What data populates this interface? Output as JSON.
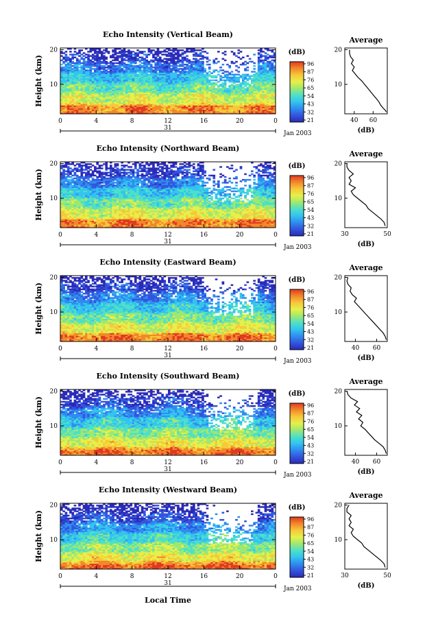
{
  "figure": {
    "bottom_xlabel": "Local Time",
    "date_label": "Jan 2003",
    "date_tick_label": "31",
    "colorbar_unit": "(dB)",
    "colorbar_ticks": [
      "96",
      "87",
      "76",
      "65",
      "54",
      "43",
      "32",
      "21"
    ],
    "colorscale": [
      "#2b2bb8",
      "#3355dd",
      "#2f8cf0",
      "#33c3f0",
      "#4de0c8",
      "#9fe870",
      "#e6f04a",
      "#f7c83a",
      "#f2882a",
      "#e03a22"
    ],
    "chart_data": [
      {
        "type": "heatmap",
        "title": "Echo Intensity (Vertical Beam)",
        "ylabel": "Height (km)",
        "x_ticks": [
          "0",
          "4",
          "8",
          "12",
          "16",
          "20",
          "0"
        ],
        "y_ticks": [
          "20",
          "10"
        ],
        "xlim": [
          0,
          24
        ],
        "ylim": [
          1.5,
          20.5
        ],
        "zlim": [
          21,
          96
        ],
        "profile": {
          "title": "Average",
          "xlabel": "(dB)",
          "x_ticks": [
            "40",
            "60"
          ],
          "y_ticks": [
            "20",
            "10"
          ],
          "xlim": [
            30,
            75
          ],
          "points": [
            [
              74,
              2
            ],
            [
              73,
              2.5
            ],
            [
              71,
              3
            ],
            [
              68,
              4
            ],
            [
              66,
              5
            ],
            [
              63,
              6
            ],
            [
              60,
              7
            ],
            [
              57,
              8
            ],
            [
              54,
              9
            ],
            [
              51,
              10
            ],
            [
              48,
              11
            ],
            [
              44,
              12
            ],
            [
              41,
              13
            ],
            [
              38,
              14
            ],
            [
              40,
              15
            ],
            [
              37,
              16
            ],
            [
              39,
              17
            ],
            [
              36,
              18
            ],
            [
              35,
              19
            ],
            [
              35,
              20
            ]
          ]
        }
      },
      {
        "type": "heatmap",
        "title": "Echo Intensity (Northward Beam)",
        "ylabel": "Height (km)",
        "x_ticks": [
          "0",
          "4",
          "8",
          "12",
          "16",
          "20",
          "0"
        ],
        "y_ticks": [
          "20",
          "10"
        ],
        "xlim": [
          0,
          24
        ],
        "ylim": [
          1.5,
          20.5
        ],
        "zlim": [
          21,
          96
        ],
        "profile": {
          "title": "Average",
          "xlabel": "(dB)",
          "x_ticks": [
            "30",
            "50"
          ],
          "y_ticks": [
            "20",
            "10"
          ],
          "xlim": [
            30,
            50
          ],
          "points": [
            [
              49,
              2
            ],
            [
              48.5,
              3
            ],
            [
              47,
              4
            ],
            [
              45,
              5
            ],
            [
              43,
              6
            ],
            [
              41,
              7
            ],
            [
              40,
              8
            ],
            [
              38,
              9
            ],
            [
              36,
              10
            ],
            [
              34,
              11
            ],
            [
              33,
              12
            ],
            [
              35,
              13
            ],
            [
              32,
              14
            ],
            [
              33,
              15
            ],
            [
              32,
              16
            ],
            [
              34,
              17
            ],
            [
              32,
              18
            ],
            [
              31,
              19
            ],
            [
              31,
              20
            ]
          ]
        }
      },
      {
        "type": "heatmap",
        "title": "Echo Intensity (Eastward Beam)",
        "ylabel": "Height (km)",
        "x_ticks": [
          "0",
          "4",
          "8",
          "12",
          "16",
          "20",
          "0"
        ],
        "y_ticks": [
          "20",
          "10"
        ],
        "xlim": [
          0,
          24
        ],
        "ylim": [
          1.5,
          20.5
        ],
        "zlim": [
          21,
          96
        ],
        "profile": {
          "title": "Average",
          "xlabel": "(dB)",
          "x_ticks": [
            "40",
            "60"
          ],
          "y_ticks": [
            "20",
            "10"
          ],
          "xlim": [
            30,
            70
          ],
          "points": [
            [
              69,
              2
            ],
            [
              68,
              3
            ],
            [
              66,
              4
            ],
            [
              63,
              5
            ],
            [
              60,
              6
            ],
            [
              57,
              7
            ],
            [
              54,
              8
            ],
            [
              51,
              9
            ],
            [
              48,
              10
            ],
            [
              45,
              11
            ],
            [
              42,
              12
            ],
            [
              39,
              13
            ],
            [
              41,
              14
            ],
            [
              37,
              15
            ],
            [
              35,
              16
            ],
            [
              36,
              17
            ],
            [
              33,
              18
            ],
            [
              32,
              19
            ],
            [
              33,
              20
            ]
          ]
        }
      },
      {
        "type": "heatmap",
        "title": "Echo Intensity (Southward Beam)",
        "ylabel": "Height (km)",
        "x_ticks": [
          "0",
          "4",
          "8",
          "12",
          "16",
          "20",
          "0"
        ],
        "y_ticks": [
          "20",
          "10"
        ],
        "xlim": [
          0,
          24
        ],
        "ylim": [
          1.5,
          20.5
        ],
        "zlim": [
          21,
          96
        ],
        "profile": {
          "title": "Average",
          "xlabel": "(dB)",
          "x_ticks": [
            "40",
            "60"
          ],
          "y_ticks": [
            "20",
            "10"
          ],
          "xlim": [
            30,
            70
          ],
          "points": [
            [
              69,
              2
            ],
            [
              68,
              3
            ],
            [
              66,
              4
            ],
            [
              62,
              5
            ],
            [
              58,
              6
            ],
            [
              55,
              7
            ],
            [
              52,
              8
            ],
            [
              49,
              9
            ],
            [
              45,
              10
            ],
            [
              47,
              11
            ],
            [
              43,
              12
            ],
            [
              46,
              13
            ],
            [
              41,
              14
            ],
            [
              44,
              15
            ],
            [
              39,
              16
            ],
            [
              42,
              17
            ],
            [
              36,
              18
            ],
            [
              33,
              19
            ],
            [
              32,
              20
            ]
          ]
        }
      },
      {
        "type": "heatmap",
        "title": "Echo Intensity (Westward Beam)",
        "ylabel": "Height (km)",
        "x_ticks": [
          "0",
          "4",
          "8",
          "12",
          "16",
          "20",
          "0"
        ],
        "y_ticks": [
          "20",
          "10"
        ],
        "xlim": [
          0,
          24
        ],
        "ylim": [
          1.5,
          20.5
        ],
        "zlim": [
          21,
          96
        ],
        "profile": {
          "title": "Average",
          "xlabel": "(dB)",
          "x_ticks": [
            "30",
            "50"
          ],
          "y_ticks": [
            "20",
            "10"
          ],
          "xlim": [
            30,
            50
          ],
          "points": [
            [
              49,
              2
            ],
            [
              48.5,
              3
            ],
            [
              47,
              4
            ],
            [
              45,
              5
            ],
            [
              43,
              6
            ],
            [
              41,
              7
            ],
            [
              39,
              8
            ],
            [
              38,
              9
            ],
            [
              36,
              10
            ],
            [
              34,
              11
            ],
            [
              33,
              12
            ],
            [
              34,
              13
            ],
            [
              32,
              14
            ],
            [
              33,
              15
            ],
            [
              32,
              16
            ],
            [
              33,
              17
            ],
            [
              31,
              18
            ],
            [
              31,
              19
            ],
            [
              32,
              20
            ]
          ]
        }
      }
    ]
  }
}
